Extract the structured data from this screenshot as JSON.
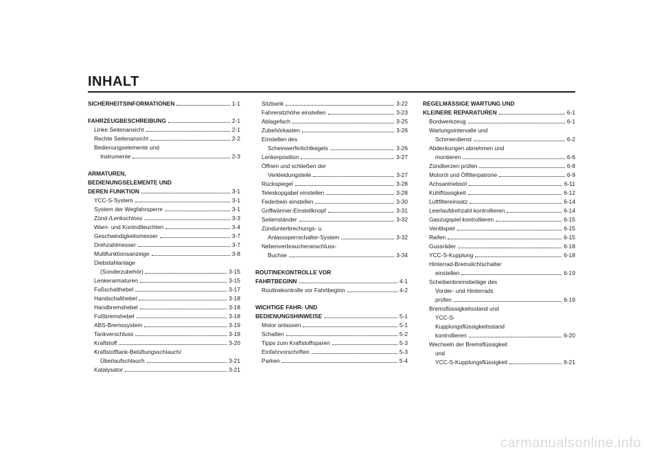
{
  "title": "INHALT",
  "watermark": "carmanualsonline.info",
  "columns": [
    [
      {
        "label": "SICHERHEITSINFORMATIONEN",
        "page": "1-1",
        "bold": true,
        "indent": 0,
        "dots": true
      },
      {
        "gap": true
      },
      {
        "label": "FAHRZEUGBESCHREIBUNG",
        "page": "2-1",
        "bold": true,
        "indent": 0,
        "dots": true
      },
      {
        "label": "Linke Seitenansicht",
        "page": "2-1",
        "bold": false,
        "indent": 1,
        "dots": true
      },
      {
        "label": "Rechte Seitenansicht",
        "page": "2-2",
        "bold": false,
        "indent": 1,
        "dots": true
      },
      {
        "label": "Bedienungselemente und",
        "page": "",
        "bold": false,
        "indent": 1,
        "dots": false
      },
      {
        "label": "Instrumente",
        "page": "2-3",
        "bold": false,
        "indent": 2,
        "dots": true
      },
      {
        "gap": true
      },
      {
        "label": "ARMATUREN,",
        "page": "",
        "bold": true,
        "indent": 0,
        "dots": false
      },
      {
        "label": "BEDIENUNGSELEMENTE UND",
        "page": "",
        "bold": true,
        "indent": 0,
        "dots": false
      },
      {
        "label": "DEREN FUNKTION",
        "page": "3-1",
        "bold": true,
        "indent": 0,
        "dots": true
      },
      {
        "label": "YCC-S-System",
        "page": "3-1",
        "bold": false,
        "indent": 1,
        "dots": true
      },
      {
        "label": "System der Wegfahrsperre",
        "page": "3-1",
        "bold": false,
        "indent": 1,
        "dots": true
      },
      {
        "label": "Zünd-/Lenkschloss",
        "page": "3-3",
        "bold": false,
        "indent": 1,
        "dots": true
      },
      {
        "label": "Warn- und Kontrollleuchten",
        "page": "3-4",
        "bold": false,
        "indent": 1,
        "dots": true
      },
      {
        "label": "Geschwindigkeitsmesser",
        "page": "3-7",
        "bold": false,
        "indent": 1,
        "dots": true
      },
      {
        "label": "Drehzahlmesser",
        "page": "3-7",
        "bold": false,
        "indent": 1,
        "dots": true
      },
      {
        "label": "Multifunktionsanzeige",
        "page": "3-8",
        "bold": false,
        "indent": 1,
        "dots": true
      },
      {
        "label": "Diebstahlanlage",
        "page": "",
        "bold": false,
        "indent": 1,
        "dots": false
      },
      {
        "label": "(Sonderzubehör)",
        "page": "3-15",
        "bold": false,
        "indent": 2,
        "dots": true
      },
      {
        "label": "Lenkerarmaturen",
        "page": "3-15",
        "bold": false,
        "indent": 1,
        "dots": true
      },
      {
        "label": "Fußschalthebel",
        "page": "3-17",
        "bold": false,
        "indent": 1,
        "dots": true
      },
      {
        "label": "Handschalthebel",
        "page": "3-18",
        "bold": false,
        "indent": 1,
        "dots": true
      },
      {
        "label": "Handbremshebel",
        "page": "3-18",
        "bold": false,
        "indent": 1,
        "dots": true
      },
      {
        "label": "Fußbremshebel",
        "page": "3-18",
        "bold": false,
        "indent": 1,
        "dots": true
      },
      {
        "label": "ABS-Bremssystem",
        "page": "3-19",
        "bold": false,
        "indent": 1,
        "dots": true
      },
      {
        "label": "Tankverschluss",
        "page": "3-19",
        "bold": false,
        "indent": 1,
        "dots": true
      },
      {
        "label": "Kraftstoff",
        "page": "3-20",
        "bold": false,
        "indent": 1,
        "dots": true
      },
      {
        "label": "Kraftstofftank-Belüftungsschlauch/",
        "page": "",
        "bold": false,
        "indent": 1,
        "dots": false
      },
      {
        "label": "Überlaufschlauch",
        "page": "3-21",
        "bold": false,
        "indent": 2,
        "dots": true
      },
      {
        "label": "Katalysator",
        "page": "3-21",
        "bold": false,
        "indent": 1,
        "dots": true
      }
    ],
    [
      {
        "label": "Sitzbank",
        "page": "3-22",
        "bold": false,
        "indent": 1,
        "dots": true
      },
      {
        "label": "Fahrersitzhöhe einstellen",
        "page": "3-23",
        "bold": false,
        "indent": 1,
        "dots": true
      },
      {
        "label": "Ablagefach",
        "page": "3-25",
        "bold": false,
        "indent": 1,
        "dots": true
      },
      {
        "label": "Zubehörkasten",
        "page": "3-26",
        "bold": false,
        "indent": 1,
        "dots": true
      },
      {
        "label": "Einstellen des",
        "page": "",
        "bold": false,
        "indent": 1,
        "dots": false
      },
      {
        "label": "Scheinwerferlichtkegels",
        "page": "3-26",
        "bold": false,
        "indent": 2,
        "dots": true
      },
      {
        "label": "Lenkerposition",
        "page": "3-27",
        "bold": false,
        "indent": 1,
        "dots": true
      },
      {
        "label": "Öffnen und schließen der",
        "page": "",
        "bold": false,
        "indent": 1,
        "dots": false
      },
      {
        "label": "Verkleidungsteile",
        "page": "3-27",
        "bold": false,
        "indent": 2,
        "dots": true
      },
      {
        "label": "Rückspiegel",
        "page": "3-28",
        "bold": false,
        "indent": 1,
        "dots": true
      },
      {
        "label": "Teleskopgabel einstellen",
        "page": "3-28",
        "bold": false,
        "indent": 1,
        "dots": true
      },
      {
        "label": "Federbein einstellen",
        "page": "3-30",
        "bold": false,
        "indent": 1,
        "dots": true
      },
      {
        "label": "Griffwärmer-Einstellknopf",
        "page": "3-31",
        "bold": false,
        "indent": 1,
        "dots": true
      },
      {
        "label": "Seitenständer",
        "page": "3-32",
        "bold": false,
        "indent": 1,
        "dots": true
      },
      {
        "label": "Zündunterbrechungs- u.",
        "page": "",
        "bold": false,
        "indent": 1,
        "dots": false
      },
      {
        "label": "Anlasssperrschalter-System",
        "page": "3-32",
        "bold": false,
        "indent": 2,
        "dots": true
      },
      {
        "label": "Nebenverbraucheranschluss-",
        "page": "",
        "bold": false,
        "indent": 1,
        "dots": false
      },
      {
        "label": "Buchse",
        "page": "3-34",
        "bold": false,
        "indent": 2,
        "dots": true
      },
      {
        "gap": true
      },
      {
        "label": "ROUTINEKONTROLLE VOR",
        "page": "",
        "bold": true,
        "indent": 0,
        "dots": false
      },
      {
        "label": "FAHRTBEGINN",
        "page": "4-1",
        "bold": true,
        "indent": 0,
        "dots": true
      },
      {
        "label": "Routinekontrolle vor Fahrtbeginn",
        "page": "4-2",
        "bold": false,
        "indent": 1,
        "dots": true
      },
      {
        "gap": true
      },
      {
        "label": "WICHTIGE FAHR- UND",
        "page": "",
        "bold": true,
        "indent": 0,
        "dots": false
      },
      {
        "label": "BEDIENUNGSHINWEISE",
        "page": "5-1",
        "bold": true,
        "indent": 0,
        "dots": true
      },
      {
        "label": "Motor anlassen",
        "page": "5-1",
        "bold": false,
        "indent": 1,
        "dots": true
      },
      {
        "label": "Schalten",
        "page": "5-2",
        "bold": false,
        "indent": 1,
        "dots": true
      },
      {
        "label": "Tipps zum Kraftstoffsparen",
        "page": "5-3",
        "bold": false,
        "indent": 1,
        "dots": true
      },
      {
        "label": "Einfahrvorschriften",
        "page": "5-3",
        "bold": false,
        "indent": 1,
        "dots": true
      },
      {
        "label": "Parken",
        "page": "5-4",
        "bold": false,
        "indent": 1,
        "dots": true
      }
    ],
    [
      {
        "label": "REGELMÄSSIGE WARTUNG UND",
        "page": "",
        "bold": true,
        "indent": 0,
        "dots": false
      },
      {
        "label": "KLEINERE REPARATUREN",
        "page": "6-1",
        "bold": true,
        "indent": 0,
        "dots": true
      },
      {
        "label": "Bordwerkzeug",
        "page": "6-1",
        "bold": false,
        "indent": 1,
        "dots": true
      },
      {
        "label": "Wartungsintervalle und",
        "page": "",
        "bold": false,
        "indent": 1,
        "dots": false
      },
      {
        "label": "Schmierdienst",
        "page": "6-2",
        "bold": false,
        "indent": 2,
        "dots": true
      },
      {
        "label": "Abdeckungen abnehmen und",
        "page": "",
        "bold": false,
        "indent": 1,
        "dots": false
      },
      {
        "label": "montieren",
        "page": "6-6",
        "bold": false,
        "indent": 2,
        "dots": true
      },
      {
        "label": "Zündkerzen prüfen",
        "page": "6-8",
        "bold": false,
        "indent": 1,
        "dots": true
      },
      {
        "label": "Motoröl und Ölfilterpatrone",
        "page": "6-9",
        "bold": false,
        "indent": 1,
        "dots": true
      },
      {
        "label": "Achsantriebsöl",
        "page": "6-11",
        "bold": false,
        "indent": 1,
        "dots": true
      },
      {
        "label": "Kühlflüssigkeit",
        "page": "6-12",
        "bold": false,
        "indent": 1,
        "dots": true
      },
      {
        "label": "Luftfiltereinsatz",
        "page": "6-14",
        "bold": false,
        "indent": 1,
        "dots": true
      },
      {
        "label": "Leerlaufdrehzahl kontrollieren",
        "page": "6-14",
        "bold": false,
        "indent": 1,
        "dots": true
      },
      {
        "label": "Gaszugspiel kontrollieren",
        "page": "6-15",
        "bold": false,
        "indent": 1,
        "dots": true
      },
      {
        "label": "Ventilspiel",
        "page": "6-15",
        "bold": false,
        "indent": 1,
        "dots": true
      },
      {
        "label": "Reifen",
        "page": "6-15",
        "bold": false,
        "indent": 1,
        "dots": true
      },
      {
        "label": "Gussräder",
        "page": "6-18",
        "bold": false,
        "indent": 1,
        "dots": true
      },
      {
        "label": "YCC-S-Kupplung",
        "page": "6-18",
        "bold": false,
        "indent": 1,
        "dots": true
      },
      {
        "label": "Hinterrad-Bremslichtschalter",
        "page": "",
        "bold": false,
        "indent": 1,
        "dots": false
      },
      {
        "label": "einstellen",
        "page": "6-19",
        "bold": false,
        "indent": 2,
        "dots": true
      },
      {
        "label": "Scheibenbremsbeläge des",
        "page": "",
        "bold": false,
        "indent": 1,
        "dots": false
      },
      {
        "label": "Vorder- und Hinterrads",
        "page": "",
        "bold": false,
        "indent": 2,
        "dots": false
      },
      {
        "label": "prüfen",
        "page": "6-19",
        "bold": false,
        "indent": 2,
        "dots": true
      },
      {
        "label": "Bremsflüssigkeitsstand und",
        "page": "",
        "bold": false,
        "indent": 1,
        "dots": false
      },
      {
        "label": "YCC-S-",
        "page": "",
        "bold": false,
        "indent": 2,
        "dots": false
      },
      {
        "label": "Kupplungsflüssigkeitsstand",
        "page": "",
        "bold": false,
        "indent": 2,
        "dots": false
      },
      {
        "label": "kontrollieren",
        "page": "6-20",
        "bold": false,
        "indent": 2,
        "dots": true
      },
      {
        "label": "Wechseln der Bremsflüssigkeit",
        "page": "",
        "bold": false,
        "indent": 1,
        "dots": false
      },
      {
        "label": "und",
        "page": "",
        "bold": false,
        "indent": 2,
        "dots": false
      },
      {
        "label": "YCC-S-Kupplungsflüssigkeit",
        "page": "6-21",
        "bold": false,
        "indent": 2,
        "dots": true
      }
    ]
  ]
}
